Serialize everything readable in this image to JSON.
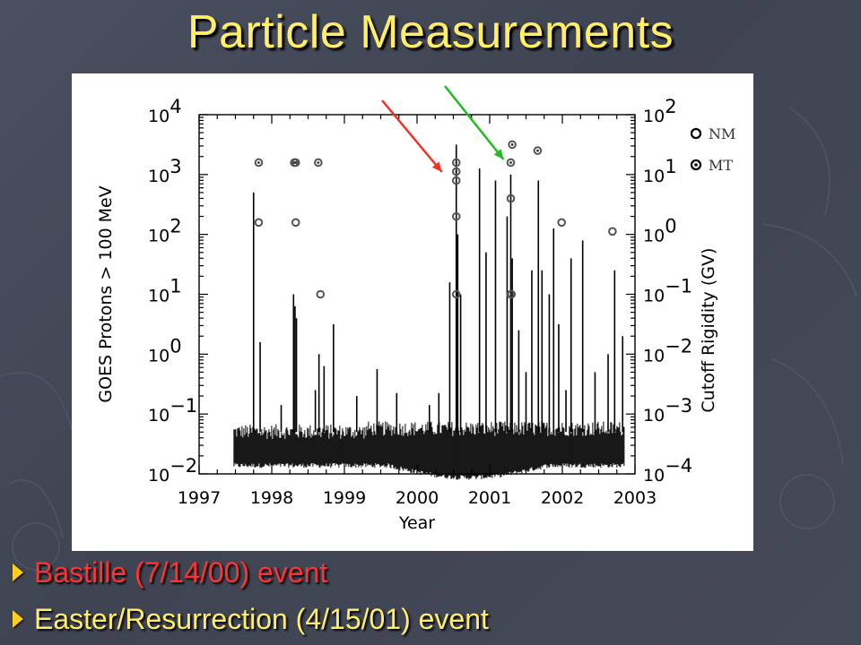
{
  "title": "Particle Measurements",
  "bullets": [
    {
      "text": "Bastille  (7/14/00) event",
      "color": "#ff3333"
    },
    {
      "text": "Easter/Resurrection  (4/15/01) event",
      "color": "#ffee66"
    }
  ],
  "chart_data": {
    "type": "scatter",
    "xlabel": "Year",
    "ylabel_left": "GOES Protons > 100 MeV",
    "ylabel_right": "Cutoff Rigidity (GV)",
    "xlim": [
      1997,
      2003
    ],
    "ylim_left_log10": [
      -2,
      4
    ],
    "ylim_right_log10": [
      -4,
      2
    ],
    "yscale": "log",
    "grid": false,
    "legend_position": "top-right",
    "x_ticks": [
      "1997",
      "1998",
      "1999",
      "2000",
      "2001",
      "2002",
      "2003"
    ],
    "y_left_ticks": [
      {
        "base": "10",
        "exp": "−2",
        "value_log10": -2
      },
      {
        "base": "10",
        "exp": "−1",
        "value_log10": -1
      },
      {
        "base": "10",
        "exp": "0",
        "value_log10": 0
      },
      {
        "base": "10",
        "exp": "1",
        "value_log10": 1
      },
      {
        "base": "10",
        "exp": "2",
        "value_log10": 2
      },
      {
        "base": "10",
        "exp": "3",
        "value_log10": 3
      },
      {
        "base": "10",
        "exp": "4",
        "value_log10": 4
      }
    ],
    "y_right_ticks": [
      {
        "base": "10",
        "exp": "−4",
        "value_log10": -4
      },
      {
        "base": "10",
        "exp": "−3",
        "value_log10": -3
      },
      {
        "base": "10",
        "exp": "−2",
        "value_log10": -2
      },
      {
        "base": "10",
        "exp": "−1",
        "value_log10": -1
      },
      {
        "base": "10",
        "exp": "0",
        "value_log10": 0
      },
      {
        "base": "10",
        "exp": "1",
        "value_log10": 1
      },
      {
        "base": "10",
        "exp": "2",
        "value_log10": 2
      }
    ],
    "legend": [
      {
        "label": "NM",
        "marker": "open-circle"
      },
      {
        "label": "MT",
        "marker": "dotted-circle"
      }
    ],
    "series": [
      {
        "name": "NM",
        "x": [
          1997.82,
          1998.33,
          1998.67,
          2000.54,
          2000.54,
          2000.54,
          2001.29,
          2001.29,
          2001.99,
          2002.69
        ],
        "y_log10_rigidity": [
          0.2,
          0.2,
          -1.0,
          -1.0,
          0.3,
          0.9,
          -1.0,
          0.6,
          0.2,
          0.05
        ]
      },
      {
        "name": "MT",
        "x": [
          1997.82,
          1998.31,
          1998.33,
          1998.64,
          2000.54,
          2000.54,
          2001.29,
          2001.31,
          2001.3,
          2001.66
        ],
        "y_log10_rigidity": [
          1.2,
          1.2,
          1.2,
          1.2,
          1.2,
          1.05,
          1.2,
          1.5,
          -1.0,
          1.4
        ]
      }
    ],
    "proton_flux_background_log10": [
      -1.9,
      -1.3
    ],
    "proton_flux_spikes": [
      {
        "x": 1997.75,
        "log10_flux": 2.7
      },
      {
        "x": 1997.84,
        "log10_flux": 0.2
      },
      {
        "x": 1998.13,
        "log10_flux": -0.85
      },
      {
        "x": 1998.3,
        "log10_flux": 1.0
      },
      {
        "x": 1998.32,
        "log10_flux": 0.8
      },
      {
        "x": 1998.34,
        "log10_flux": 0.6
      },
      {
        "x": 1998.6,
        "log10_flux": -0.6
      },
      {
        "x": 1998.65,
        "log10_flux": 0.0
      },
      {
        "x": 1998.72,
        "log10_flux": -0.2
      },
      {
        "x": 1998.85,
        "log10_flux": 0.5
      },
      {
        "x": 1999.17,
        "log10_flux": -0.7
      },
      {
        "x": 1999.45,
        "log10_flux": -0.25
      },
      {
        "x": 1999.72,
        "log10_flux": -0.65
      },
      {
        "x": 2000.17,
        "log10_flux": -0.85
      },
      {
        "x": 2000.3,
        "log10_flux": -0.65
      },
      {
        "x": 2000.45,
        "log10_flux": 1.2
      },
      {
        "x": 2000.54,
        "log10_flux": 3.5
      },
      {
        "x": 2000.56,
        "log10_flux": 2.0
      },
      {
        "x": 2000.6,
        "log10_flux": 1.0
      },
      {
        "x": 2000.86,
        "log10_flux": 3.1
      },
      {
        "x": 2000.95,
        "log10_flux": 1.7
      },
      {
        "x": 2001.08,
        "log10_flux": 2.9
      },
      {
        "x": 2001.24,
        "log10_flux": 2.3
      },
      {
        "x": 2001.29,
        "log10_flux": 3.0
      },
      {
        "x": 2001.31,
        "log10_flux": 1.6
      },
      {
        "x": 2001.4,
        "log10_flux": 0.4
      },
      {
        "x": 2001.5,
        "log10_flux": -0.3
      },
      {
        "x": 2001.58,
        "log10_flux": 1.4
      },
      {
        "x": 2001.67,
        "log10_flux": 2.9
      },
      {
        "x": 2001.72,
        "log10_flux": 1.4
      },
      {
        "x": 2001.82,
        "log10_flux": 1.0
      },
      {
        "x": 2001.88,
        "log10_flux": 2.1
      },
      {
        "x": 2001.95,
        "log10_flux": 0.5
      },
      {
        "x": 2002.05,
        "log10_flux": -0.6
      },
      {
        "x": 2002.12,
        "log10_flux": 1.6
      },
      {
        "x": 2002.28,
        "log10_flux": 1.9
      },
      {
        "x": 2002.45,
        "log10_flux": -0.3
      },
      {
        "x": 2002.63,
        "log10_flux": 0.0
      },
      {
        "x": 2002.72,
        "log10_flux": 1.4
      },
      {
        "x": 2002.83,
        "log10_flux": 0.3
      }
    ],
    "annotation_arrows": [
      {
        "color": "#ee3322",
        "points_to_x": 2000.54
      },
      {
        "color": "#22bb22",
        "points_to_x": 2001.29
      }
    ]
  }
}
